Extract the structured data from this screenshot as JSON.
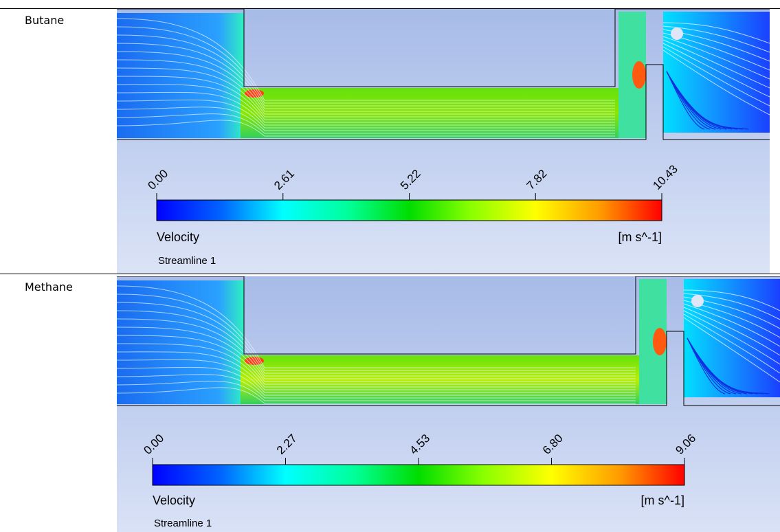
{
  "rows": [
    {
      "label": "Butane",
      "figure": {
        "ticks": [
          "0.00",
          "2.61",
          "5.22",
          "7.82",
          "10.43"
        ],
        "quantity": "Velocity",
        "unit": "[m s^-1]",
        "caption": "Streamline 1"
      }
    },
    {
      "label": "Methane",
      "figure": {
        "ticks": [
          "0.00",
          "2.27",
          "4.53",
          "6.80",
          "9.06"
        ],
        "quantity": "Velocity",
        "unit": "[m s^-1]",
        "caption": "Streamline 1"
      }
    }
  ]
}
